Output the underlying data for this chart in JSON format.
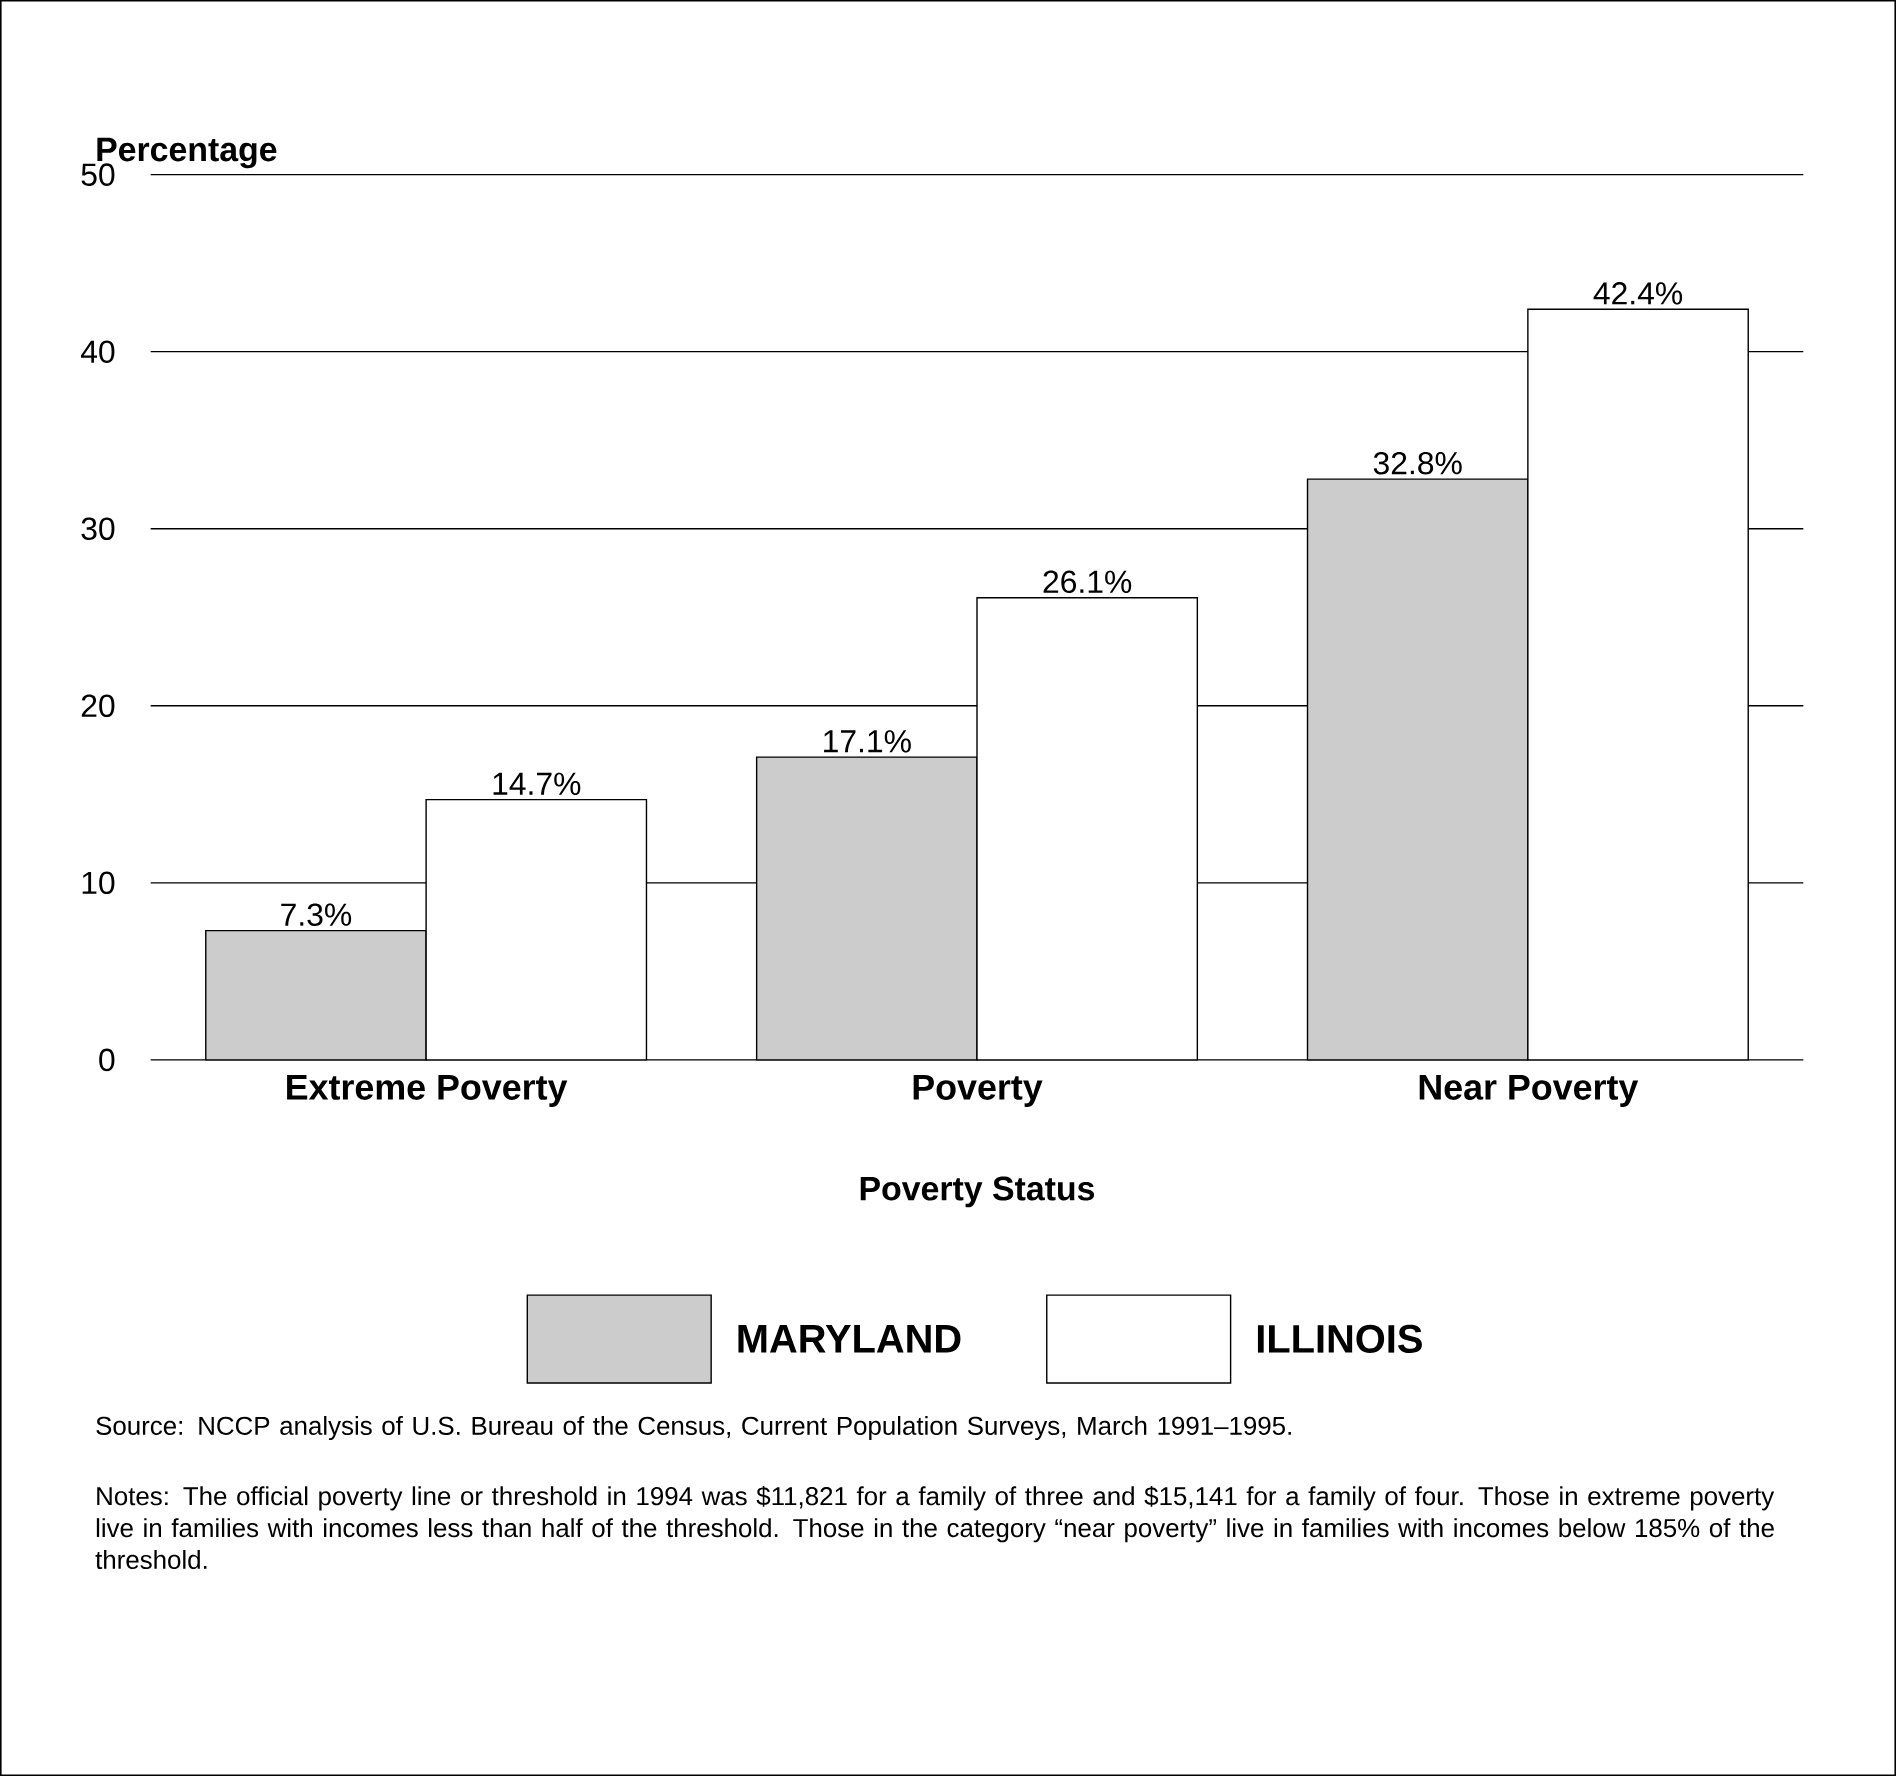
{
  "chart_data": {
    "type": "bar",
    "ylabel": "Percentage",
    "xlabel": "Poverty Status",
    "categories": [
      "Extreme Poverty",
      "Poverty",
      "Near Poverty"
    ],
    "series": [
      {
        "name": "MARYLAND",
        "color": "#cccccc",
        "values": [
          7.3,
          17.1,
          32.8
        ],
        "value_labels": [
          "7.3%",
          "17.1%",
          "32.8%"
        ]
      },
      {
        "name": "ILLINOIS",
        "color": "#ffffff",
        "values": [
          14.7,
          26.1,
          42.4
        ],
        "value_labels": [
          "14.7%",
          "26.1%",
          "42.4%"
        ]
      }
    ],
    "ylim": [
      0,
      50
    ],
    "yticks": [
      0,
      10,
      20,
      30,
      40,
      50
    ],
    "grid": "y",
    "legend": "bottom",
    "annotations": [
      "Source: NCCP analysis of U.S. Bureau of the Census, Current Population Surveys, March 1991–1995.",
      "Notes: The official poverty line or threshold in 1994 was $11,821 for a family of three and $15,141 for a family of four. Those in extreme poverty live in families with incomes less than half of the threshold. Those in the category “near poverty” live in families with incomes below 185% of the threshold."
    ]
  }
}
